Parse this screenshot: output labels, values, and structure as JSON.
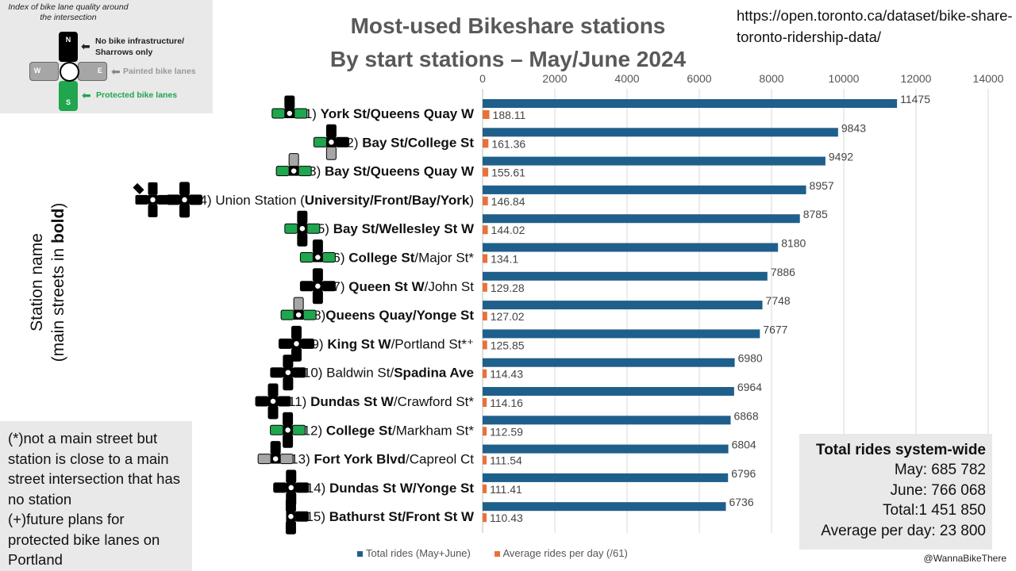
{
  "chart_data": {
    "type": "bar",
    "orientation": "horizontal",
    "title_line1": "Most-used Bikeshare stations",
    "title_line2": "By start stations – May/June 2024",
    "ylabel_line1": "Station name",
    "ylabel_line2_prefix": "(main streets in ",
    "ylabel_line2_bold": "bold",
    "ylabel_line2_suffix": ")",
    "xlim": [
      0,
      14000
    ],
    "xticks": [
      0,
      2000,
      4000,
      6000,
      8000,
      10000,
      12000,
      14000
    ],
    "grid": true,
    "legend_position": "bottom",
    "categories": [
      {
        "rank": "1) ",
        "parts": [
          {
            "t": "York St/Queens Quay W",
            "b": true
          }
        ]
      },
      {
        "rank": "2) ",
        "parts": [
          {
            "t": "Bay St/College St",
            "b": true
          }
        ]
      },
      {
        "rank": "3) ",
        "parts": [
          {
            "t": "Bay St/Queens Quay W",
            "b": true
          }
        ]
      },
      {
        "rank": "4) ",
        "parts": [
          {
            "t": "Union Station (",
            "b": false
          },
          {
            "t": "University/Front/Bay/York",
            "b": true
          },
          {
            "t": ")",
            "b": false
          }
        ]
      },
      {
        "rank": "5) ",
        "parts": [
          {
            "t": "Bay St/Wellesley St W",
            "b": true
          }
        ]
      },
      {
        "rank": "6) ",
        "parts": [
          {
            "t": "College St",
            "b": true
          },
          {
            "t": "/Major St*",
            "b": false
          }
        ]
      },
      {
        "rank": "7) ",
        "parts": [
          {
            "t": "Queen St W",
            "b": true
          },
          {
            "t": "/John St",
            "b": false
          }
        ]
      },
      {
        "rank": "8)",
        "parts": [
          {
            "t": "Queens Quay/Yonge St",
            "b": true
          }
        ]
      },
      {
        "rank": "9) ",
        "parts": [
          {
            "t": "King St W",
            "b": true
          },
          {
            "t": "/Portland St*⁺",
            "b": false
          }
        ]
      },
      {
        "rank": "10) ",
        "parts": [
          {
            "t": "Baldwin St/",
            "b": false
          },
          {
            "t": "Spadina Ave",
            "b": true
          }
        ]
      },
      {
        "rank": "11) ",
        "parts": [
          {
            "t": "Dundas St W",
            "b": true
          },
          {
            "t": "/Crawford St*",
            "b": false
          }
        ]
      },
      {
        "rank": "12) ",
        "parts": [
          {
            "t": "College St",
            "b": true
          },
          {
            "t": "/Markham St*",
            "b": false
          }
        ]
      },
      {
        "rank": "13) ",
        "parts": [
          {
            "t": "Fort York  Blvd",
            "b": true
          },
          {
            "t": "/Capreol Ct",
            "b": false
          }
        ]
      },
      {
        "rank": "14) ",
        "parts": [
          {
            "t": "Dundas St W/Yonge St",
            "b": true
          }
        ]
      },
      {
        "rank": "15) ",
        "parts": [
          {
            "t": "Bathurst St/Front St W",
            "b": true
          }
        ]
      }
    ],
    "series": [
      {
        "name": "Total rides (May+June)",
        "color": "#1f5f8b",
        "values": [
          11475,
          9843,
          9492,
          8957,
          8785,
          8180,
          7886,
          7748,
          7677,
          6980,
          6964,
          6868,
          6804,
          6796,
          6736
        ],
        "labels": [
          "11475",
          "9843",
          "9492",
          "8957",
          "8785",
          "8180",
          "7886",
          "7748",
          "7677",
          "6980",
          "6964",
          "6868",
          "6804",
          "6796",
          "6736"
        ]
      },
      {
        "name": "Average rides per day (/61)",
        "color": "#e8713a",
        "values": [
          188.11,
          161.36,
          155.61,
          146.84,
          144.02,
          134.1,
          129.28,
          127.02,
          125.85,
          114.43,
          114.16,
          112.59,
          111.54,
          111.41,
          110.43
        ],
        "labels": [
          "188.11",
          "161.36",
          "155.61",
          "146.84",
          "144.02",
          "134.1",
          "129.28",
          "127.02",
          "125.85",
          "114.43",
          "114.16",
          "112.59",
          "111.54",
          "111.41",
          "110.43"
        ]
      }
    ],
    "intersection_icons": [
      {
        "n": "black",
        "s": "none",
        "w": "green",
        "e": "green"
      },
      {
        "n": "black",
        "s": "gray",
        "w": "green",
        "e": "black"
      },
      {
        "n": "gray",
        "s": "none",
        "w": "green",
        "e": "green"
      },
      {
        "n": "black",
        "s": "black",
        "w": "black",
        "e": "black"
      },
      {
        "n": "black",
        "s": "black",
        "w": "green",
        "e": "green"
      },
      {
        "n": "black",
        "s": "none",
        "w": "green",
        "e": "green"
      },
      {
        "n": "black",
        "s": "black",
        "w": "black",
        "e": "black"
      },
      {
        "n": "gray",
        "s": "none",
        "w": "green",
        "e": "green"
      },
      {
        "n": "black",
        "s": "black",
        "w": "black",
        "e": "black"
      },
      {
        "n": "black",
        "s": "black",
        "w": "black",
        "e": "black"
      },
      {
        "n": "black",
        "s": "black",
        "w": "black",
        "e": "black"
      },
      {
        "n": "black",
        "s": "black",
        "w": "green",
        "e": "green"
      },
      {
        "n": "black",
        "s": "none",
        "w": "gray",
        "e": "gray"
      },
      {
        "n": "black",
        "s": "black",
        "w": "black",
        "e": "black"
      },
      {
        "n": "black",
        "s": "black",
        "w": "none",
        "e": "black"
      }
    ]
  },
  "legend": {
    "title": "Index of bike lane quality around the intersection",
    "n_label": "N",
    "w_label": "W",
    "e_label": "E",
    "s_label": "S",
    "no_infra_line1": "No bike infrastructure/",
    "no_infra_line2": "Sharrows only",
    "painted": "Painted bike lanes",
    "protected": "Protected bike lanes",
    "colors": {
      "black": "#000000",
      "gray": "#a6a6a6",
      "green": "#1fa64f"
    }
  },
  "source_url": "https://open.toronto.ca/dataset/bike-share-toronto-ridership-data/",
  "notes": {
    "star": "(*)not a main street but station is close to a main street intersection that has no station",
    "plus": "(+)future plans for protected bike lanes on Portland"
  },
  "totals": {
    "title": "Total rides system-wide",
    "may": "May: 685 782",
    "june": "June: 766 068",
    "total": "Total:1 451 850",
    "avg": "Average per day: 23 800"
  },
  "credit": "@WannaBikeThere"
}
